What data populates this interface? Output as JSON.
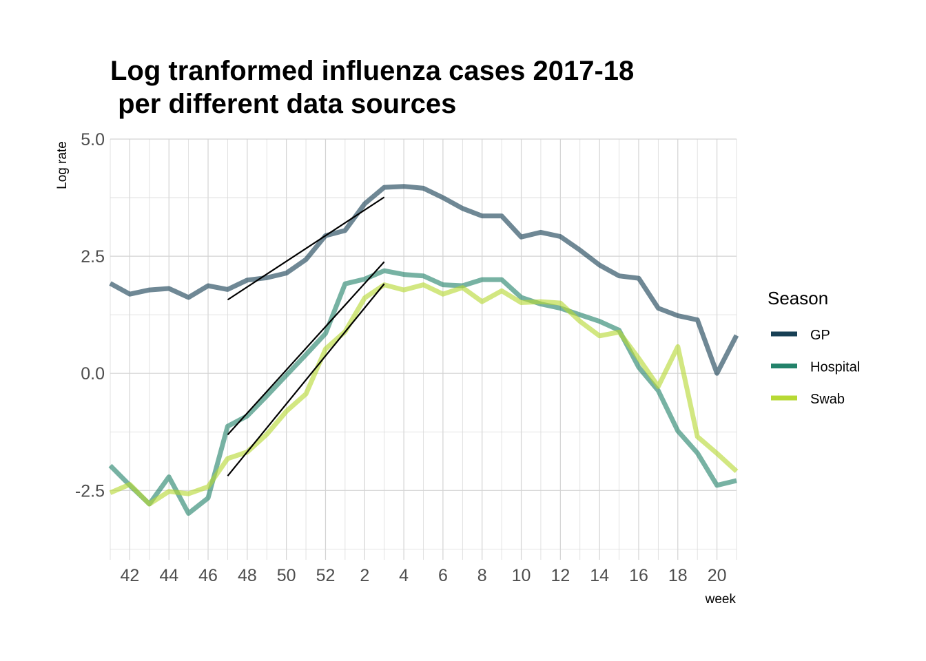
{
  "chart_data": {
    "type": "line",
    "title_line1": "Log tranformed influenza cases 2017-18",
    "title_line2": " per different data sources",
    "xlabel": "week",
    "ylabel": "Log rate",
    "x_categories": [
      "41",
      "42",
      "43",
      "44",
      "45",
      "46",
      "47",
      "48",
      "49",
      "50",
      "51",
      "52",
      "1",
      "2",
      "3",
      "4",
      "5",
      "6",
      "7",
      "8",
      "9",
      "10",
      "11",
      "12",
      "13",
      "14",
      "15",
      "16",
      "17",
      "18",
      "19",
      "20",
      "21"
    ],
    "x_tick_labels": [
      "42",
      "44",
      "46",
      "48",
      "50",
      "52",
      "2",
      "4",
      "6",
      "8",
      "10",
      "12",
      "14",
      "16",
      "18",
      "20"
    ],
    "y_ticks": [
      -2.5,
      0.0,
      2.5,
      5.0
    ],
    "y_tick_labels": [
      "-2.5",
      "0.0",
      "2.5",
      "5.0"
    ],
    "ylim": [
      -3.98,
      5.0
    ],
    "grid": true,
    "legend": {
      "title": "Season",
      "position": "right",
      "entries": [
        {
          "label": "GP",
          "color": "#173f54"
        },
        {
          "label": "Hospital",
          "color": "#23826a"
        },
        {
          "label": "Swab",
          "color": "#b7d934"
        }
      ]
    },
    "series": [
      {
        "name": "GP",
        "color": "#173f54",
        "values": [
          1.92,
          1.69,
          1.78,
          1.81,
          1.62,
          1.87,
          1.79,
          1.99,
          2.04,
          2.14,
          2.43,
          2.94,
          3.05,
          3.62,
          3.97,
          3.99,
          3.95,
          3.75,
          3.52,
          3.36,
          3.36,
          2.91,
          3.01,
          2.92,
          2.63,
          2.31,
          2.08,
          2.03,
          1.39,
          1.23,
          1.14,
          0.0,
          0.81
        ]
      },
      {
        "name": "Hospital",
        "color": "#23826a",
        "values": [
          -1.97,
          -2.39,
          -2.79,
          -2.21,
          -2.99,
          -2.66,
          -1.13,
          -0.91,
          -0.48,
          -0.04,
          0.4,
          0.85,
          1.91,
          2.01,
          2.19,
          2.11,
          2.08,
          1.89,
          1.87,
          2.0,
          2.0,
          1.62,
          1.48,
          1.39,
          1.25,
          1.11,
          0.92,
          0.13,
          -0.37,
          -1.23,
          -1.7,
          -2.39,
          -2.29
        ]
      },
      {
        "name": "Swab",
        "color": "#b7d934",
        "values": [
          -2.55,
          -2.37,
          -2.79,
          -2.52,
          -2.57,
          -2.42,
          -1.82,
          -1.68,
          -1.3,
          -0.81,
          -0.44,
          0.52,
          0.89,
          1.61,
          1.89,
          1.78,
          1.89,
          1.69,
          1.83,
          1.53,
          1.76,
          1.51,
          1.53,
          1.5,
          1.11,
          0.8,
          0.88,
          0.32,
          -0.28,
          0.57,
          -1.35,
          -1.71,
          -2.09
        ]
      }
    ],
    "trend_lines": [
      {
        "color": "#000000",
        "x_start": "47",
        "x_end": "3",
        "y_start": 1.57,
        "y_end": 3.76
      },
      {
        "color": "#000000",
        "x_start": "47",
        "x_end": "3",
        "y_start": -1.31,
        "y_end": 2.38
      },
      {
        "color": "#000000",
        "x_start": "47",
        "x_end": "3",
        "y_start": -2.19,
        "y_end": 1.91
      }
    ]
  }
}
